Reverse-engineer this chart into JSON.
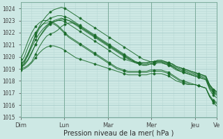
{
  "xlabel": "Pression niveau de la mer( hPa )",
  "ylim": [
    1015,
    1024.5
  ],
  "yticks": [
    1015,
    1016,
    1017,
    1018,
    1019,
    1020,
    1021,
    1022,
    1023,
    1024
  ],
  "day_labels": [
    "Dim",
    "Lun",
    "Mar",
    "Mer",
    "Jeu",
    "Ve"
  ],
  "day_positions": [
    0,
    48,
    96,
    144,
    192,
    216
  ],
  "background_color": "#cde8e4",
  "grid_major_color": "#a8ccca",
  "grid_minor_color": "#b8d8d5",
  "line_color": "#1a6b2a",
  "total_hours": 216,
  "series": [
    [
      1019.0,
      1019.1,
      1019.3,
      1019.6,
      1020.2,
      1020.8,
      1021.3,
      1021.7,
      1021.9,
      1022.0,
      1022.2,
      1022.5,
      1022.7,
      1022.8,
      1022.8,
      1022.7,
      1022.5,
      1022.3,
      1022.1,
      1021.9,
      1021.7,
      1021.5,
      1021.3,
      1021.1,
      1020.9,
      1020.7,
      1020.5,
      1020.3,
      1020.1,
      1019.9,
      1019.7,
      1019.5,
      1019.4,
      1019.3,
      1019.3,
      1019.4,
      1019.4,
      1019.5,
      1019.5,
      1019.4,
      1019.3,
      1019.2,
      1019.0,
      1018.9,
      1018.8,
      1018.7,
      1018.6,
      1018.5,
      1018.4,
      1018.3,
      1018.2,
      1017.5,
      1017.1,
      1016.9
    ],
    [
      1019.2,
      1019.4,
      1019.8,
      1020.4,
      1021.0,
      1021.6,
      1022.0,
      1022.4,
      1022.7,
      1022.9,
      1023.0,
      1023.1,
      1023.1,
      1023.0,
      1022.9,
      1022.7,
      1022.5,
      1022.3,
      1022.1,
      1021.9,
      1021.7,
      1021.5,
      1021.3,
      1021.1,
      1020.9,
      1020.7,
      1020.5,
      1020.3,
      1020.1,
      1019.9,
      1019.7,
      1019.5,
      1019.4,
      1019.3,
      1019.3,
      1019.4,
      1019.4,
      1019.5,
      1019.5,
      1019.4,
      1019.3,
      1019.1,
      1018.9,
      1018.8,
      1018.7,
      1018.6,
      1018.5,
      1018.4,
      1018.3,
      1018.2,
      1018.1,
      1017.4,
      1017.0,
      1016.8
    ],
    [
      1019.4,
      1019.7,
      1020.3,
      1021.0,
      1021.7,
      1022.3,
      1022.7,
      1023.0,
      1023.2,
      1023.3,
      1023.4,
      1023.4,
      1023.3,
      1023.2,
      1023.0,
      1022.8,
      1022.6,
      1022.4,
      1022.2,
      1022.0,
      1021.8,
      1021.6,
      1021.4,
      1021.2,
      1021.0,
      1020.8,
      1020.6,
      1020.4,
      1020.2,
      1020.0,
      1019.8,
      1019.6,
      1019.5,
      1019.4,
      1019.4,
      1019.5,
      1019.5,
      1019.6,
      1019.6,
      1019.5,
      1019.4,
      1019.3,
      1019.1,
      1019.0,
      1018.9,
      1018.8,
      1018.7,
      1018.6,
      1018.5,
      1018.4,
      1018.3,
      1017.6,
      1017.2,
      1017.0
    ],
    [
      1019.0,
      1019.5,
      1020.2,
      1021.0,
      1021.8,
      1022.5,
      1023.0,
      1023.4,
      1023.7,
      1023.9,
      1024.0,
      1024.1,
      1024.0,
      1023.8,
      1023.6,
      1023.4,
      1023.2,
      1023.0,
      1022.8,
      1022.6,
      1022.4,
      1022.2,
      1022.0,
      1021.8,
      1021.6,
      1021.4,
      1021.2,
      1021.0,
      1020.8,
      1020.6,
      1020.4,
      1020.2,
      1020.0,
      1019.8,
      1019.7,
      1019.6,
      1019.6,
      1019.6,
      1019.6,
      1019.5,
      1019.4,
      1019.2,
      1019.0,
      1018.8,
      1018.7,
      1018.6,
      1018.5,
      1018.4,
      1018.3,
      1018.2,
      1018.1,
      1017.3,
      1016.8,
      1016.6
    ],
    [
      1019.1,
      1019.3,
      1019.7,
      1020.3,
      1021.0,
      1021.6,
      1022.1,
      1022.5,
      1022.8,
      1023.0,
      1023.1,
      1023.2,
      1023.1,
      1023.0,
      1022.8,
      1022.6,
      1022.4,
      1022.2,
      1022.0,
      1021.8,
      1021.6,
      1021.4,
      1021.2,
      1021.0,
      1020.8,
      1020.6,
      1020.4,
      1020.2,
      1020.0,
      1019.8,
      1019.7,
      1019.6,
      1019.5,
      1019.5,
      1019.5,
      1019.6,
      1019.6,
      1019.7,
      1019.7,
      1019.6,
      1019.5,
      1019.4,
      1019.2,
      1019.1,
      1019.0,
      1018.9,
      1018.8,
      1018.7,
      1018.6,
      1018.5,
      1018.4,
      1017.7,
      1017.3,
      1017.1
    ],
    [
      1019.3,
      1019.6,
      1020.1,
      1020.8,
      1021.4,
      1021.9,
      1022.3,
      1022.6,
      1022.8,
      1022.9,
      1023.0,
      1023.0,
      1022.9,
      1022.7,
      1022.5,
      1022.3,
      1022.1,
      1021.9,
      1021.7,
      1021.5,
      1021.3,
      1021.1,
      1020.9,
      1020.7,
      1020.5,
      1020.3,
      1020.1,
      1019.9,
      1019.8,
      1019.7,
      1019.6,
      1019.5,
      1019.5,
      1019.5,
      1019.5,
      1019.6,
      1019.6,
      1019.7,
      1019.7,
      1019.6,
      1019.5,
      1019.4,
      1019.2,
      1019.1,
      1019.0,
      1018.9,
      1018.8,
      1018.7,
      1018.6,
      1018.5,
      1018.4,
      1017.7,
      1017.3,
      1017.1
    ],
    [
      1018.9,
      1019.0,
      1019.2,
      1019.5,
      1019.9,
      1020.3,
      1020.6,
      1020.8,
      1020.9,
      1020.9,
      1020.8,
      1020.7,
      1020.5,
      1020.3,
      1020.1,
      1019.9,
      1019.8,
      1019.7,
      1019.6,
      1019.5,
      1019.4,
      1019.3,
      1019.2,
      1019.1,
      1019.0,
      1018.9,
      1018.8,
      1018.7,
      1018.6,
      1018.5,
      1018.5,
      1018.5,
      1018.5,
      1018.5,
      1018.5,
      1018.6,
      1018.6,
      1018.6,
      1018.6,
      1018.5,
      1018.4,
      1018.2,
      1018.0,
      1017.9,
      1017.8,
      1017.7,
      1017.7,
      1017.7,
      1017.6,
      1017.5,
      1017.4,
      1016.8,
      1016.4,
      1016.2
    ],
    [
      1019.5,
      1020.0,
      1020.8,
      1021.5,
      1022.0,
      1022.4,
      1022.7,
      1022.8,
      1022.8,
      1022.7,
      1022.5,
      1022.2,
      1021.9,
      1021.6,
      1021.4,
      1021.2,
      1021.0,
      1020.8,
      1020.6,
      1020.4,
      1020.2,
      1020.0,
      1019.8,
      1019.6,
      1019.4,
      1019.2,
      1019.0,
      1018.9,
      1018.8,
      1018.7,
      1018.7,
      1018.7,
      1018.7,
      1018.7,
      1018.7,
      1018.8,
      1018.8,
      1018.8,
      1018.8,
      1018.7,
      1018.6,
      1018.4,
      1018.2,
      1018.0,
      1017.9,
      1017.8,
      1017.7,
      1017.7,
      1017.6,
      1017.5,
      1017.4,
      1016.7,
      1016.3,
      1016.1
    ],
    [
      1019.8,
      1020.5,
      1021.3,
      1022.0,
      1022.5,
      1022.8,
      1023.0,
      1023.0,
      1022.9,
      1022.8,
      1022.6,
      1022.3,
      1022.0,
      1021.7,
      1021.5,
      1021.3,
      1021.1,
      1020.9,
      1020.7,
      1020.5,
      1020.3,
      1020.1,
      1019.9,
      1019.7,
      1019.5,
      1019.3,
      1019.1,
      1019.0,
      1018.9,
      1018.8,
      1018.8,
      1018.8,
      1018.8,
      1018.8,
      1018.8,
      1018.9,
      1018.9,
      1018.9,
      1018.9,
      1018.8,
      1018.7,
      1018.5,
      1018.3,
      1018.1,
      1018.0,
      1017.9,
      1017.8,
      1017.7,
      1017.6,
      1017.5,
      1017.4,
      1016.7,
      1016.2,
      1015.9
    ]
  ]
}
